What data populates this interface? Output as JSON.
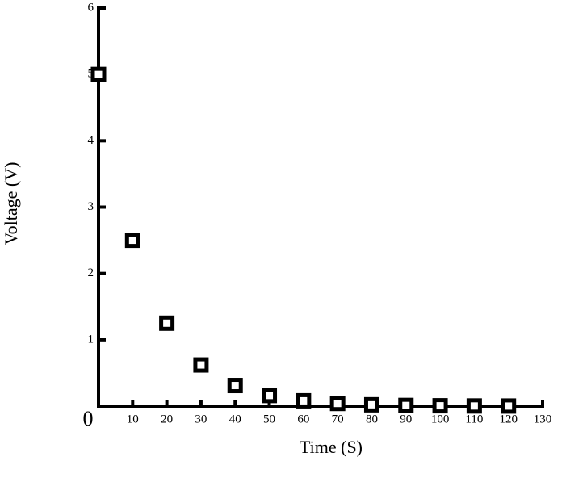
{
  "chart_data": {
    "type": "scatter",
    "x_label": "Time (S)",
    "y_label": "Voltage (V)",
    "series": [
      {
        "name": "Voltage",
        "color": "#000000",
        "x": [
          0,
          10,
          20,
          30,
          40,
          50,
          60,
          70,
          80,
          90,
          100,
          110,
          120
        ],
        "values": [
          5,
          2.5,
          1.25,
          0.62,
          0.31,
          0.16,
          0.08,
          0.04,
          0.02,
          0.01,
          0.005,
          0.002,
          0.001
        ]
      }
    ],
    "xlim": [
      0,
      130
    ],
    "xticks": [
      0,
      10,
      20,
      30,
      40,
      50,
      60,
      70,
      80,
      90,
      100,
      110,
      120,
      130
    ],
    "ylim": [
      0,
      6
    ],
    "yticks": [
      1,
      2,
      3,
      4,
      5,
      6
    ]
  }
}
